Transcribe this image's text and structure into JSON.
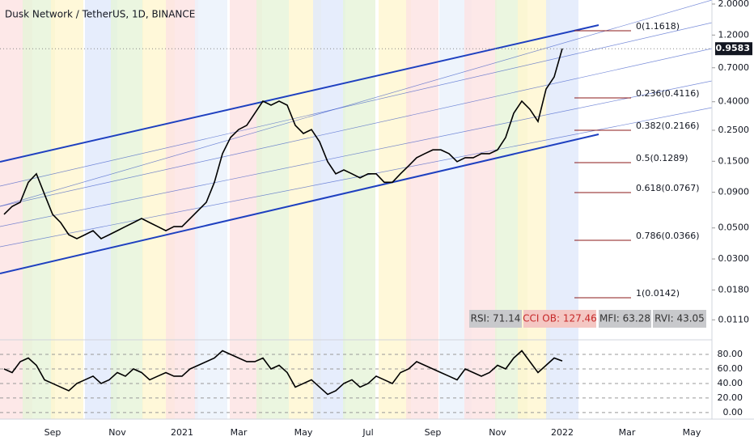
{
  "chart_data": [
    {
      "type": "line",
      "title": "Dusk Network / TetherUS, 1D, BINANCE",
      "categories": [
        null,
        null,
        null,
        null,
        null,
        null,
        "Sep",
        null,
        null,
        null,
        null,
        null,
        null,
        null,
        "Nov",
        null,
        null,
        null,
        null,
        null,
        null,
        null,
        "2021",
        null,
        null,
        null,
        null,
        null,
        null,
        "Mar",
        null,
        null,
        null,
        null,
        null,
        null,
        null,
        "May",
        null,
        null,
        null,
        null,
        null,
        null,
        null,
        "Jul",
        null,
        null,
        null,
        null,
        null,
        null,
        null,
        "Sep",
        null,
        null,
        null,
        null,
        null,
        null,
        null,
        "Nov",
        null,
        null,
        null,
        null,
        null,
        null,
        null,
        "2022",
        null,
        null,
        null,
        null,
        null,
        null,
        null,
        "Mar",
        null,
        null,
        null,
        null,
        null,
        null,
        null,
        "May",
        null,
        null
      ],
      "values": [
        0.0625,
        0.0713,
        0.0763,
        0.106,
        0.122,
        0.0871,
        0.0625,
        0.0546,
        0.0447,
        0.0419,
        0.0447,
        0.0478,
        0.0419,
        0.0447,
        0.0478,
        0.0511,
        0.0546,
        0.0584,
        0.0546,
        0.0511,
        0.0478,
        0.0511,
        0.0511,
        0.0584,
        0.0667,
        0.0763,
        0.106,
        0.17,
        0.222,
        0.253,
        0.271,
        0.331,
        0.404,
        0.378,
        0.404,
        0.378,
        0.271,
        0.237,
        0.253,
        0.207,
        0.149,
        0.122,
        0.13,
        0.122,
        0.114,
        0.122,
        0.122,
        0.106,
        0.106,
        0.122,
        0.139,
        0.159,
        0.17,
        0.181,
        0.181,
        0.17,
        0.149,
        0.159,
        0.159,
        0.17,
        0.17,
        0.181,
        0.222,
        0.331,
        0.404,
        0.353,
        0.289,
        0.493,
        0.602,
        0.961,
        null,
        null,
        null,
        null,
        null,
        null,
        null,
        null,
        null,
        null,
        null,
        null,
        null,
        null,
        null,
        null,
        null,
        null
      ],
      "color": "#000000",
      "log": true,
      "ylim": [
        0.00846,
        2.138
      ],
      "yticks": [
        {
          "value": 2.0,
          "label": "2.0000"
        },
        {
          "value": 1.2,
          "label": "1.2000"
        },
        {
          "value": 0.7,
          "label": "0.7000"
        },
        {
          "value": 0.4,
          "label": "0.4000"
        },
        {
          "value": 0.25,
          "label": "0.2500"
        },
        {
          "value": 0.15,
          "label": "0.1500"
        },
        {
          "value": 0.09,
          "label": "0.0900"
        },
        {
          "value": 0.05,
          "label": "0.0500"
        },
        {
          "value": 0.03,
          "label": "0.0300"
        },
        {
          "value": 0.018,
          "label": "0.0180"
        },
        {
          "value": 0.011,
          "label": "0.0110"
        }
      ],
      "last_price": 0.9583,
      "annotations": [
        "0(1.1618)",
        "0.236(0.4116)",
        "0.382(0.2166)",
        "0.5(0.1289)",
        "0.618(0.0767)",
        "0.786(0.0366)",
        "1(0.0142)"
      ],
      "indicators": [
        "RSI: 71.14",
        "CCI OB: 127.46",
        "MFI: 63.28",
        "RVI: 43.05"
      ]
    },
    {
      "type": "line",
      "values": [
        60,
        55,
        70,
        75,
        65,
        45,
        40,
        35,
        30,
        40,
        45,
        50,
        40,
        45,
        55,
        50,
        60,
        55,
        45,
        50,
        55,
        50,
        50,
        60,
        65,
        70,
        75,
        85,
        80,
        75,
        70,
        70,
        75,
        60,
        65,
        55,
        35,
        40,
        45,
        35,
        25,
        30,
        40,
        45,
        35,
        40,
        50,
        45,
        40,
        55,
        60,
        70,
        65,
        60,
        55,
        50,
        45,
        60,
        55,
        50,
        55,
        65,
        60,
        75,
        85,
        70,
        55,
        65,
        75,
        71
      ],
      "color": "#000000",
      "grid": true,
      "ylim": [
        -9,
        100
      ],
      "yticks": [
        {
          "value": 80,
          "label": "80.00"
        },
        {
          "value": 60,
          "label": "60.00"
        },
        {
          "value": 40,
          "label": "40.00"
        },
        {
          "value": 20,
          "label": "20.00"
        },
        {
          "value": 0,
          "label": "0.00"
        }
      ]
    }
  ]
}
